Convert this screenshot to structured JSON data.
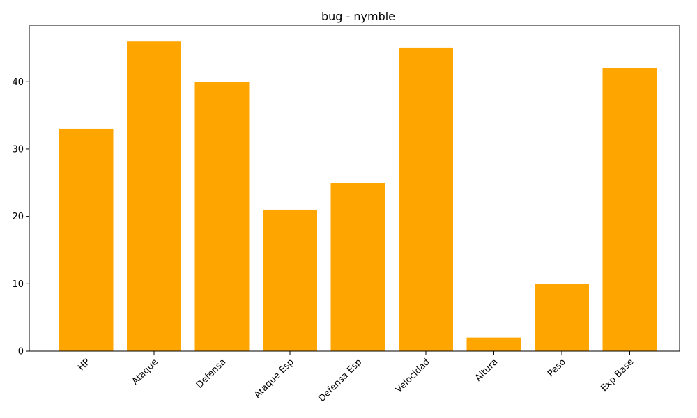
{
  "chart_data": {
    "type": "bar",
    "title": "bug - nymble",
    "xlabel": "",
    "ylabel": "",
    "categories": [
      "HP",
      "Ataque",
      "Defensa",
      "Ataque Esp",
      "Defensa Esp",
      "Velocidad",
      "Altura",
      "Peso",
      "Exp Base"
    ],
    "values": [
      33,
      46,
      40,
      21,
      25,
      45,
      2,
      10,
      42
    ],
    "ylim": [
      0,
      48.3
    ],
    "yticks": [
      0,
      10,
      20,
      30,
      40
    ],
    "bar_color": "#ffa500",
    "grid": false,
    "xtick_rotation": 45
  }
}
